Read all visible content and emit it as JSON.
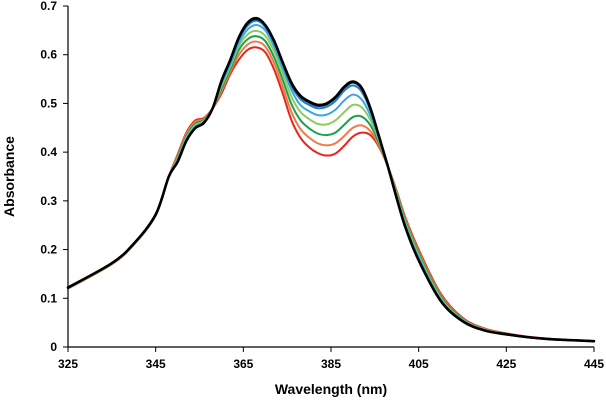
{
  "chart_data": {
    "type": "line",
    "title": "",
    "xlabel": "Wavelength (nm)",
    "ylabel": "Absorbance",
    "xlim": [
      325,
      445
    ],
    "ylim": [
      0,
      0.7
    ],
    "x_ticks": [
      325,
      345,
      365,
      385,
      405,
      425,
      445
    ],
    "y_ticks": [
      0,
      0.1,
      0.2,
      0.3,
      0.4,
      0.5,
      0.6,
      0.7
    ],
    "x_tick_labels": [
      "325",
      "345",
      "365",
      "385",
      "405",
      "425",
      "445"
    ],
    "y_tick_labels": [
      "0",
      "0.1",
      "0.2",
      "0.3",
      "0.4",
      "0.5",
      "0.6",
      "0.7"
    ],
    "grid": false,
    "legend": "none",
    "x": [
      325,
      335,
      340,
      345,
      348,
      350,
      352,
      354,
      356,
      358,
      360,
      362,
      364,
      366,
      368,
      370,
      372,
      374,
      376,
      378,
      380,
      382,
      384,
      386,
      388,
      390,
      392,
      394,
      396,
      398,
      400,
      402,
      405,
      410,
      415,
      420,
      425,
      430,
      435,
      440,
      445
    ],
    "series": [
      {
        "name": "trace-1",
        "color": "#e8251b",
        "width": 2,
        "values": [
          0.12,
          0.17,
          0.21,
          0.27,
          0.35,
          0.395,
          0.44,
          0.465,
          0.47,
          0.49,
          0.52,
          0.56,
          0.59,
          0.61,
          0.615,
          0.605,
          0.57,
          0.52,
          0.465,
          0.43,
          0.41,
          0.398,
          0.393,
          0.397,
          0.413,
          0.432,
          0.44,
          0.435,
          0.41,
          0.37,
          0.32,
          0.265,
          0.2,
          0.11,
          0.06,
          0.038,
          0.028,
          0.021,
          0.017,
          0.014,
          0.012
        ]
      },
      {
        "name": "trace-2",
        "color": "#f07a4a",
        "width": 2,
        "values": [
          0.12,
          0.17,
          0.21,
          0.27,
          0.35,
          0.392,
          0.437,
          0.462,
          0.468,
          0.49,
          0.525,
          0.565,
          0.6,
          0.621,
          0.627,
          0.617,
          0.583,
          0.534,
          0.482,
          0.448,
          0.43,
          0.418,
          0.414,
          0.418,
          0.433,
          0.45,
          0.455,
          0.443,
          0.413,
          0.37,
          0.318,
          0.262,
          0.196,
          0.107,
          0.058,
          0.037,
          0.027,
          0.02,
          0.016,
          0.014,
          0.012
        ]
      },
      {
        "name": "trace-3",
        "color": "#17a34a",
        "width": 2,
        "values": [
          0.121,
          0.171,
          0.211,
          0.271,
          0.35,
          0.389,
          0.433,
          0.458,
          0.466,
          0.49,
          0.53,
          0.57,
          0.61,
          0.632,
          0.638,
          0.628,
          0.595,
          0.548,
          0.498,
          0.466,
          0.449,
          0.438,
          0.435,
          0.44,
          0.456,
          0.472,
          0.473,
          0.455,
          0.418,
          0.37,
          0.315,
          0.258,
          0.192,
          0.104,
          0.057,
          0.036,
          0.027,
          0.02,
          0.016,
          0.014,
          0.012
        ]
      },
      {
        "name": "trace-4",
        "color": "#8ccb5e",
        "width": 2,
        "values": [
          0.121,
          0.171,
          0.211,
          0.271,
          0.35,
          0.386,
          0.43,
          0.455,
          0.464,
          0.49,
          0.535,
          0.575,
          0.618,
          0.642,
          0.649,
          0.639,
          0.607,
          0.561,
          0.513,
          0.483,
          0.468,
          0.458,
          0.457,
          0.465,
          0.482,
          0.497,
          0.492,
          0.466,
          0.423,
          0.37,
          0.312,
          0.254,
          0.188,
          0.101,
          0.056,
          0.036,
          0.026,
          0.02,
          0.016,
          0.014,
          0.012
        ]
      },
      {
        "name": "trace-5",
        "color": "#3aa8df",
        "width": 2,
        "values": [
          0.122,
          0.172,
          0.212,
          0.272,
          0.35,
          0.383,
          0.427,
          0.452,
          0.462,
          0.49,
          0.54,
          0.58,
          0.625,
          0.652,
          0.661,
          0.65,
          0.617,
          0.572,
          0.527,
          0.497,
          0.484,
          0.476,
          0.477,
          0.487,
          0.506,
          0.518,
          0.508,
          0.475,
          0.427,
          0.37,
          0.309,
          0.25,
          0.184,
          0.098,
          0.055,
          0.035,
          0.026,
          0.02,
          0.016,
          0.014,
          0.012
        ]
      },
      {
        "name": "trace-6",
        "color": "#1b7fc4",
        "width": 2,
        "values": [
          0.122,
          0.172,
          0.212,
          0.272,
          0.35,
          0.381,
          0.424,
          0.45,
          0.461,
          0.49,
          0.543,
          0.585,
          0.632,
          0.66,
          0.67,
          0.657,
          0.625,
          0.58,
          0.536,
          0.509,
          0.497,
          0.49,
          0.493,
          0.505,
          0.526,
          0.537,
          0.524,
          0.485,
          0.43,
          0.37,
          0.306,
          0.246,
          0.18,
          0.096,
          0.054,
          0.035,
          0.026,
          0.02,
          0.016,
          0.014,
          0.012
        ]
      },
      {
        "name": "trace-7",
        "color": "#101050",
        "width": 2,
        "values": [
          0.122,
          0.172,
          0.212,
          0.272,
          0.35,
          0.38,
          0.423,
          0.449,
          0.46,
          0.49,
          0.545,
          0.588,
          0.635,
          0.664,
          0.673,
          0.66,
          0.628,
          0.583,
          0.54,
          0.514,
          0.502,
          0.495,
          0.498,
          0.511,
          0.532,
          0.543,
          0.53,
          0.488,
          0.43,
          0.37,
          0.305,
          0.245,
          0.178,
          0.095,
          0.053,
          0.034,
          0.026,
          0.02,
          0.016,
          0.014,
          0.012
        ]
      },
      {
        "name": "trace-8",
        "color": "#000000",
        "width": 2.6,
        "values": [
          0.122,
          0.172,
          0.212,
          0.272,
          0.35,
          0.38,
          0.423,
          0.449,
          0.46,
          0.49,
          0.546,
          0.589,
          0.636,
          0.666,
          0.675,
          0.661,
          0.629,
          0.584,
          0.542,
          0.516,
          0.504,
          0.497,
          0.5,
          0.513,
          0.534,
          0.545,
          0.532,
          0.49,
          0.431,
          0.37,
          0.305,
          0.245,
          0.178,
          0.095,
          0.053,
          0.034,
          0.026,
          0.02,
          0.016,
          0.014,
          0.012
        ]
      }
    ]
  }
}
